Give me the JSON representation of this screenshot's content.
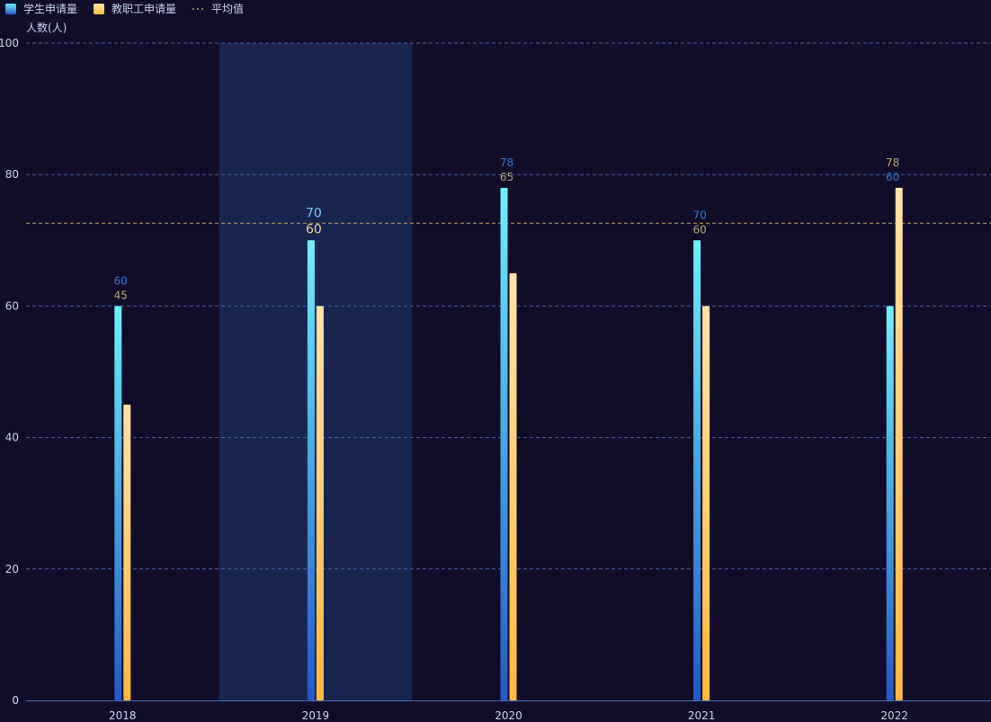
{
  "chart_data": {
    "type": "bar",
    "categories": [
      "2018",
      "2019",
      "2020",
      "2021",
      "2022"
    ],
    "series": [
      {
        "name": "学生申请量",
        "values": [
          60,
          70,
          78,
          70,
          60
        ],
        "color_top": "#6ff0fa",
        "color_bottom": "#2458c8"
      },
      {
        "name": "教职工申请量",
        "values": [
          45,
          60,
          65,
          60,
          78
        ],
        "color_top": "#ffe2a8",
        "color_bottom": "#ffba3c"
      }
    ],
    "reference_line": {
      "name": "平均值",
      "value": 72.6,
      "color": "#b8a05a"
    },
    "highlighted_category": "2019",
    "ylabel": "人数(人)",
    "ylim": [
      0,
      100
    ],
    "yticks": [
      0,
      20,
      40,
      60,
      80,
      100
    ],
    "grid": true,
    "legend_position": "top-left"
  },
  "colors": {
    "background": "#110d29",
    "grid": "#4a5fa0",
    "highlight_band": "#19244f",
    "axis": "#4a6fb8",
    "text": "#c9d3f2"
  }
}
